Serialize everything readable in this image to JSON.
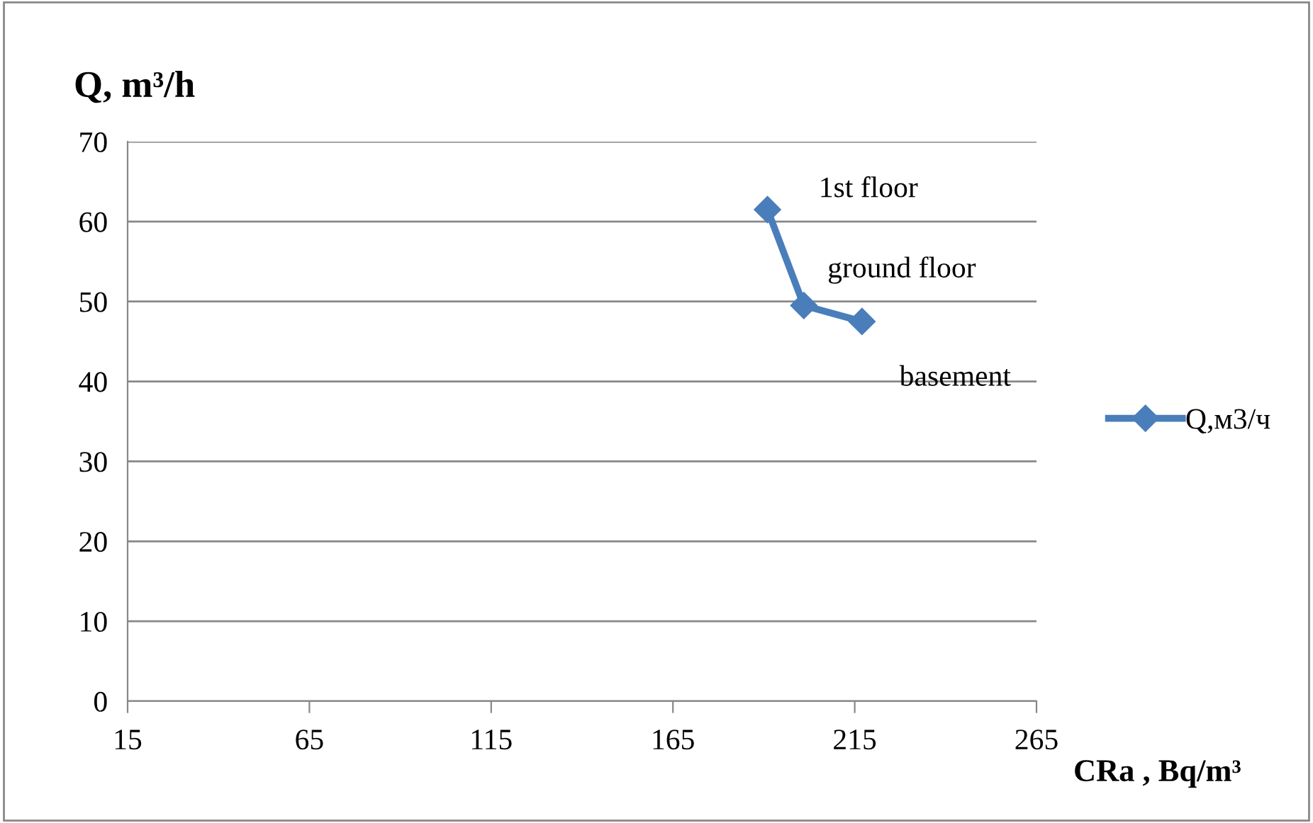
{
  "chart_data": {
    "type": "line",
    "xlabel": "CRa , Bq/m³",
    "ylabel": "Q, m³/h",
    "series": [
      {
        "name": "Q,м3/ч",
        "color": "#4a7ebb",
        "x": [
          191,
          201,
          217
        ],
        "values": [
          61.5,
          49.5,
          47.5
        ]
      }
    ],
    "annotations": [
      {
        "text": "1st floor",
        "x": 191,
        "y": 61.5
      },
      {
        "text": "ground floor",
        "x": 201,
        "y": 49.5
      },
      {
        "text": "basement",
        "x": 217,
        "y": 47.5
      }
    ],
    "xlim": [
      15,
      265
    ],
    "xticks": [
      15,
      65,
      115,
      165,
      215,
      265
    ],
    "ylim": [
      0,
      70
    ],
    "yticks": [
      0,
      10,
      20,
      30,
      40,
      50,
      60,
      70
    ],
    "grid": "y",
    "legend": "right",
    "marker": "diamond",
    "line_style": "solid"
  }
}
